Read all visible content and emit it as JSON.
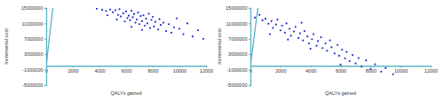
{
  "chart_data": [
    {
      "type": "scatter",
      "x_label": "QALYs gained",
      "y_label": "Incremental cost",
      "xlim": [
        0,
        12000
      ],
      "ylim": [
        -5000000,
        15000000
      ],
      "xticks": [
        0,
        2000,
        4000,
        6000,
        8000,
        10000,
        12000
      ],
      "yticks": [
        -5000000,
        -1000000,
        3000000,
        7000000,
        11000000,
        15000000
      ],
      "series": [
        {
          "type": "scatter",
          "color": "#1f2fd0",
          "x": [
            3800,
            4200,
            4500,
            4800,
            5000,
            5200,
            5400,
            5500,
            5600,
            5800,
            6000,
            6100,
            6200,
            6300,
            6400,
            6500,
            6600,
            6700,
            6800,
            6900,
            7000,
            7100,
            7200,
            7300,
            7400,
            7500,
            7600,
            7700,
            7800,
            7900,
            8000,
            8100,
            8200,
            8400,
            8500,
            8600,
            8800,
            9000,
            9200,
            9400,
            9600,
            9800,
            10000,
            10300,
            10600,
            11000,
            11400,
            11800,
            5900,
            6400,
            7200,
            5300,
            4600
          ],
          "values": [
            14800000,
            14500000,
            14200000,
            14600000,
            13900000,
            14400000,
            13200000,
            14700000,
            12800000,
            13600000,
            14100000,
            12400000,
            13000000,
            11800000,
            14300000,
            12600000,
            13400000,
            11200000,
            12000000,
            13800000,
            10800000,
            12900000,
            11600000,
            13100000,
            10400000,
            12200000,
            11000000,
            13500000,
            9800000,
            11900000,
            12700000,
            10200000,
            11400000,
            9400000,
            12100000,
            10600000,
            11200000,
            9000000,
            10800000,
            8600000,
            10000000,
            12300000,
            9600000,
            8200000,
            11000000,
            7600000,
            9200000,
            7000000,
            11500000,
            10100000,
            9300000,
            12000000,
            13100000
          ]
        },
        {
          "type": "line",
          "color": "#4bacc6",
          "x": [
            0,
            500
          ],
          "values": [
            0,
            15000000
          ]
        }
      ]
    },
    {
      "type": "scatter",
      "x_label": "QALYs gained",
      "y_label": "Incremental cost",
      "xlim": [
        0,
        12000
      ],
      "ylim": [
        -5000000,
        15000000
      ],
      "xticks": [
        0,
        2000,
        4000,
        6000,
        8000,
        10000,
        12000
      ],
      "yticks": [
        -5000000,
        -1000000,
        3000000,
        7000000,
        11000000,
        15000000
      ],
      "series": [
        {
          "type": "scatter",
          "color": "#1f2fd0",
          "x": [
            300,
            600,
            800,
            1000,
            1200,
            1400,
            1500,
            1700,
            1800,
            2000,
            2100,
            2300,
            2400,
            2600,
            2700,
            2900,
            3000,
            3200,
            3300,
            3500,
            3600,
            3800,
            3900,
            4100,
            4200,
            4400,
            4500,
            4700,
            4800,
            5000,
            5100,
            5300,
            5400,
            5600,
            5800,
            5900,
            6100,
            6300,
            6400,
            6600,
            6800,
            7000,
            7200,
            7400,
            7700,
            8000,
            8300,
            8700,
            9000,
            9500,
            2500,
            4000,
            1300,
            6000,
            3400
          ],
          "values": [
            12500000,
            13200000,
            11800000,
            12200000,
            10900000,
            11600000,
            9800000,
            10700000,
            12000000,
            9200000,
            10400000,
            8600000,
            11000000,
            9600000,
            7800000,
            8900000,
            10100000,
            7200000,
            8400000,
            6600000,
            9000000,
            7600000,
            5800000,
            6900000,
            8200000,
            5200000,
            6400000,
            7400000,
            4600000,
            5800000,
            3900000,
            6600000,
            4800000,
            3200000,
            5400000,
            2600000,
            4200000,
            1900000,
            3600000,
            1200000,
            2800000,
            600000,
            2000000,
            -200000,
            1400000,
            -800000,
            400000,
            -1500000,
            -600000,
            -2200000,
            6800000,
            4400000,
            8200000,
            300000,
            11200000
          ]
        },
        {
          "type": "line",
          "color": "#4bacc6",
          "x": [
            0,
            500
          ],
          "values": [
            0,
            15000000
          ]
        }
      ]
    }
  ]
}
